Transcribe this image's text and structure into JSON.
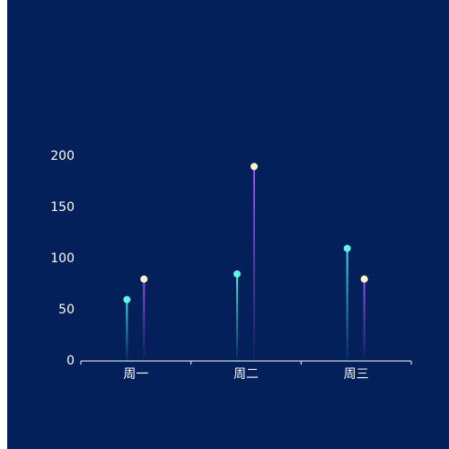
{
  "chart_data": {
    "type": "lollipop",
    "categories": [
      "周一",
      "周二",
      "周三"
    ],
    "series": [
      {
        "color": "#3ee8e0",
        "dot_color": "#5ef7ea",
        "values": [
          60,
          85,
          110
        ]
      },
      {
        "color": "#a050f0",
        "dot_color": "#fdf6c8",
        "values": [
          80,
          190,
          80
        ]
      }
    ],
    "ylim": [
      0,
      200
    ],
    "yticks": [
      0,
      50,
      100,
      150,
      200
    ],
    "grid": false
  }
}
